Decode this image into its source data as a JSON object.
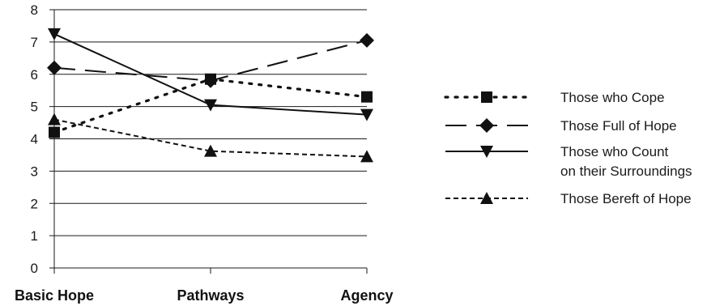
{
  "chart_data": {
    "type": "line",
    "categories": [
      "Basic Hope",
      "Pathways",
      "Agency"
    ],
    "ylim": [
      0,
      8
    ],
    "yticks": [
      0,
      1,
      2,
      3,
      4,
      5,
      6,
      7,
      8
    ],
    "grid": true,
    "legend_position": "right",
    "series": [
      {
        "name": "Those who Cope",
        "values": [
          4.2,
          5.85,
          5.3
        ],
        "line_style": "dotted",
        "marker": "square",
        "legend_lines": [
          "Those who Cope"
        ]
      },
      {
        "name": "Those Full of Hope",
        "values": [
          6.2,
          5.8,
          7.05
        ],
        "line_style": "long-dash",
        "marker": "diamond",
        "legend_lines": [
          "Those Full of Hope"
        ]
      },
      {
        "name": "Those who Count on their Surroundings",
        "values": [
          7.25,
          5.05,
          4.75
        ],
        "line_style": "solid",
        "marker": "triangle-down",
        "legend_lines": [
          "Those who Count",
          "on their Surroundings"
        ]
      },
      {
        "name": "Those Bereft of Hope",
        "values": [
          4.6,
          3.62,
          3.45
        ],
        "line_style": "short-dash",
        "marker": "triangle-up",
        "legend_lines": [
          "Those Bereft of Hope"
        ]
      }
    ],
    "colors": {
      "series": "#111111",
      "grid": "#1a1a1a",
      "axis": "#1a1a1a"
    }
  }
}
